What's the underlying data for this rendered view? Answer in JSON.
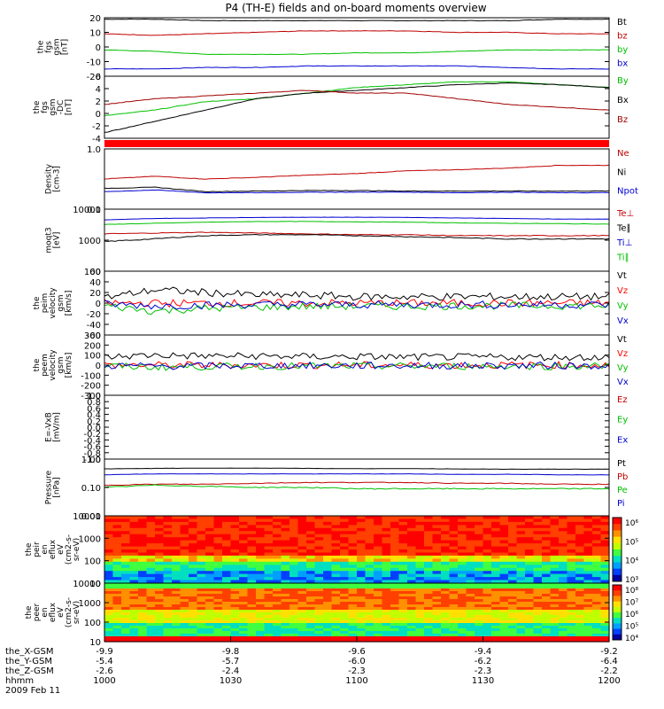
{
  "title": "P4 (TH-E) fields and on-board moments overview",
  "chart_data": [
    {
      "type": "line",
      "ylabel": [
        "the",
        "fgs",
        "gsm",
        "[nT]"
      ],
      "ylim": [
        -20,
        20
      ],
      "yticks": [
        "20",
        "10",
        "0",
        "-10",
        "-20"
      ],
      "series": [
        {
          "name": "Bt",
          "color": "#000000",
          "values": [
            19,
            19,
            18,
            18,
            18,
            18,
            18,
            18,
            18,
            19,
            19
          ]
        },
        {
          "name": "bz",
          "color": "#c00000",
          "values": [
            9,
            8,
            9,
            10,
            11,
            11,
            11,
            10,
            10,
            9,
            9
          ]
        },
        {
          "name": "by",
          "color": "#00c000",
          "values": [
            -2,
            -3,
            -5,
            -5,
            -5,
            -4,
            -4,
            -3,
            -2,
            -2,
            -2
          ]
        },
        {
          "name": "bx",
          "color": "#0000d0",
          "values": [
            -15,
            -15,
            -14,
            -14,
            -13,
            -13,
            -13,
            -13,
            -14,
            -15,
            -15
          ]
        }
      ]
    },
    {
      "type": "line",
      "ylabel": [
        "the",
        "fgs",
        "gsm",
        "-DC",
        "[nT]"
      ],
      "ylim": [
        -5,
        6
      ],
      "yticks": [
        "6",
        "4",
        "2",
        "0",
        "-2",
        "-4"
      ],
      "series": [
        {
          "name": "By",
          "color": "#00c000",
          "values": [
            -1,
            0,
            1.5,
            2,
            3,
            4,
            4.5,
            5,
            5,
            4.5,
            4
          ]
        },
        {
          "name": "Bx",
          "color": "#000000",
          "values": [
            -4,
            -2,
            0,
            2,
            3,
            3.5,
            4,
            4.5,
            4.8,
            4.5,
            4
          ]
        },
        {
          "name": "Bz",
          "color": "#a00000",
          "values": [
            1,
            2,
            2.5,
            3,
            3.5,
            3,
            3,
            2,
            1,
            0.5,
            0
          ]
        }
      ]
    },
    {
      "type": "line",
      "ylabel": [
        "Density",
        "[cm-3]"
      ],
      "ylim": [
        0.1,
        1.2
      ],
      "yticks": [
        "1.0",
        "0.1"
      ],
      "series": [
        {
          "name": "Ne",
          "color": "#c00000",
          "values": [
            0.65,
            0.7,
            0.65,
            0.68,
            0.72,
            0.75,
            0.8,
            0.82,
            0.85,
            0.9,
            0.9
          ]
        },
        {
          "name": "Ni",
          "color": "#000000",
          "values": [
            0.48,
            0.5,
            0.42,
            0.43,
            0.44,
            0.44,
            0.43,
            0.43,
            0.43,
            0.43,
            0.43
          ]
        },
        {
          "name": "Npot",
          "color": "#0000d0",
          "values": [
            0.42,
            0.45,
            0.4,
            0.4,
            0.41,
            0.41,
            0.41,
            0.4,
            0.41,
            0.4,
            0.4
          ]
        }
      ]
    },
    {
      "type": "line",
      "ylabel": [
        "moqt3",
        "[eV]"
      ],
      "ylim": [
        100,
        10000
      ],
      "log": true,
      "yticks": [
        "10000",
        "1000",
        "100"
      ],
      "series": [
        {
          "name": "Te⊥",
          "color": "#c00000",
          "values": [
            1600,
            1700,
            1800,
            1700,
            1600,
            1500,
            1500,
            1400,
            1400,
            1400,
            1400
          ]
        },
        {
          "name": "Te∥",
          "color": "#000000",
          "values": [
            900,
            1100,
            1400,
            1500,
            1500,
            1400,
            1300,
            1200,
            1100,
            1100,
            1100
          ]
        },
        {
          "name": "Ti⊥",
          "color": "#0000d0",
          "values": [
            4500,
            5000,
            5200,
            5400,
            5500,
            5500,
            5400,
            5200,
            5000,
            4800,
            4800
          ]
        },
        {
          "name": "Ti∥",
          "color": "#00c000",
          "values": [
            3200,
            3500,
            3800,
            4000,
            4000,
            3900,
            3800,
            3600,
            3500,
            3400,
            3300
          ]
        }
      ]
    },
    {
      "type": "line",
      "ylabel": [
        "the",
        "peim",
        "velocity",
        "gsm",
        "[km/s]"
      ],
      "ylim": [
        -60,
        60
      ],
      "yticks": [
        "60",
        "40",
        "20",
        "0",
        "-20",
        "-40",
        "-60"
      ],
      "series": [
        {
          "name": "Vt",
          "color": "#000000",
          "values": [
            10,
            25,
            20,
            15,
            15,
            12,
            12,
            12,
            12,
            12,
            12
          ]
        },
        {
          "name": "Vz",
          "color": "#ff0000",
          "values": [
            0,
            0,
            0,
            0,
            0,
            0,
            0,
            0,
            0,
            0,
            0
          ]
        },
        {
          "name": "Vy",
          "color": "#00c000",
          "values": [
            -5,
            -15,
            -10,
            -8,
            -6,
            -6,
            -6,
            -5,
            -5,
            -5,
            -5
          ]
        },
        {
          "name": "Vx",
          "color": "#0000d0",
          "values": [
            -2,
            -5,
            -4,
            -3,
            -3,
            -3,
            -3,
            -3,
            -3,
            -3,
            -3
          ]
        }
      ]
    },
    {
      "type": "line",
      "ylabel": [
        "the",
        "peem",
        "velocity",
        "gsm",
        "[km/s]"
      ],
      "ylim": [
        -300,
        300
      ],
      "yticks": [
        "300",
        "200",
        "100",
        "0",
        "-100",
        "-200",
        "-300"
      ],
      "series": [
        {
          "name": "Vt",
          "color": "#000000",
          "values": [
            80,
            100,
            90,
            90,
            85,
            85,
            80,
            80,
            80,
            80,
            80
          ]
        },
        {
          "name": "Vz",
          "color": "#ff0000",
          "values": [
            0,
            0,
            0,
            0,
            0,
            0,
            0,
            0,
            0,
            0,
            0
          ]
        },
        {
          "name": "Vy",
          "color": "#00c000",
          "values": [
            -10,
            -20,
            -15,
            -10,
            -10,
            -10,
            -10,
            -10,
            -10,
            -10,
            -10
          ]
        },
        {
          "name": "Vx",
          "color": "#0000d0",
          "values": [
            -5,
            -10,
            -8,
            -5,
            -5,
            -5,
            -5,
            -5,
            -5,
            -5,
            -5
          ]
        }
      ]
    },
    {
      "type": "line",
      "ylabel": [
        "E=-VxB",
        "[mV/m]"
      ],
      "ylim": [
        -1,
        1
      ],
      "yticks": [
        "1.0",
        "0.8",
        "0.6",
        "0.4",
        "0.2",
        "0.0",
        "-0.2",
        "-0.4",
        "-0.6",
        "-0.8",
        "-1.0"
      ],
      "series": [
        {
          "name": "Ez",
          "color": "#c00000",
          "values": []
        },
        {
          "name": "Ey",
          "color": "#00c000",
          "values": []
        },
        {
          "name": "Ex",
          "color": "#0000d0",
          "values": []
        }
      ]
    },
    {
      "type": "line",
      "ylabel": [
        "Pressure",
        "[nPa]"
      ],
      "ylim": [
        0.01,
        1
      ],
      "log": true,
      "yticks": [
        "1.00",
        "0.10",
        "0.01"
      ],
      "series": [
        {
          "name": "Pt",
          "color": "#000000",
          "values": [
            0.45,
            0.47,
            0.48,
            0.48,
            0.47,
            0.46,
            0.46,
            0.45,
            0.44,
            0.44,
            0.44
          ]
        },
        {
          "name": "Pb",
          "color": "#c00000",
          "values": [
            0.12,
            0.13,
            0.13,
            0.14,
            0.15,
            0.15,
            0.15,
            0.14,
            0.14,
            0.13,
            0.13
          ]
        },
        {
          "name": "Pe",
          "color": "#00c000",
          "values": [
            0.1,
            0.12,
            0.11,
            0.1,
            0.1,
            0.09,
            0.09,
            0.09,
            0.09,
            0.09,
            0.09
          ]
        },
        {
          "name": "Pi",
          "color": "#0000d0",
          "values": [
            0.28,
            0.3,
            0.3,
            0.3,
            0.3,
            0.3,
            0.3,
            0.29,
            0.29,
            0.28,
            0.28
          ]
        }
      ]
    },
    {
      "type": "heatmap",
      "ylabel": [
        "the",
        "peir",
        "en",
        "eflux",
        "eV",
        "(cm2-s-",
        "sr-eV)"
      ],
      "ylim": [
        10,
        10000
      ],
      "log": true,
      "yticks": [
        "10000",
        "1000",
        "100",
        "10"
      ],
      "colorbar": [
        "10⁶",
        "10⁵",
        "10⁴",
        "10³"
      ]
    },
    {
      "type": "heatmap",
      "ylabel": [
        "the",
        "peer",
        "en",
        "eflux",
        "eV",
        "(cm2-s-",
        "sr-eV)"
      ],
      "ylim": [
        10,
        10000
      ],
      "log": true,
      "yticks": [
        "10000",
        "1000",
        "100",
        "10"
      ],
      "colorbar": [
        "10⁸",
        "10⁷",
        "10⁶",
        "10⁵",
        "10⁴"
      ]
    }
  ],
  "xaxis": {
    "rows": [
      {
        "label": "the_X-GSM",
        "values": [
          "-9.9",
          "-9.8",
          "-9.6",
          "-9.4",
          "-9.2"
        ]
      },
      {
        "label": "the_Y-GSM",
        "values": [
          "-5.4",
          "-5.7",
          "-6.0",
          "-6.2",
          "-6.4"
        ]
      },
      {
        "label": "the_Z-GSM",
        "values": [
          "-2.6",
          "-2.4",
          "-2.3",
          "-2.3",
          "-2.2"
        ]
      },
      {
        "label": "hhmm",
        "values": [
          "1000",
          "1030",
          "1100",
          "1130",
          "1200"
        ]
      }
    ],
    "date": "2009 Feb 11"
  }
}
